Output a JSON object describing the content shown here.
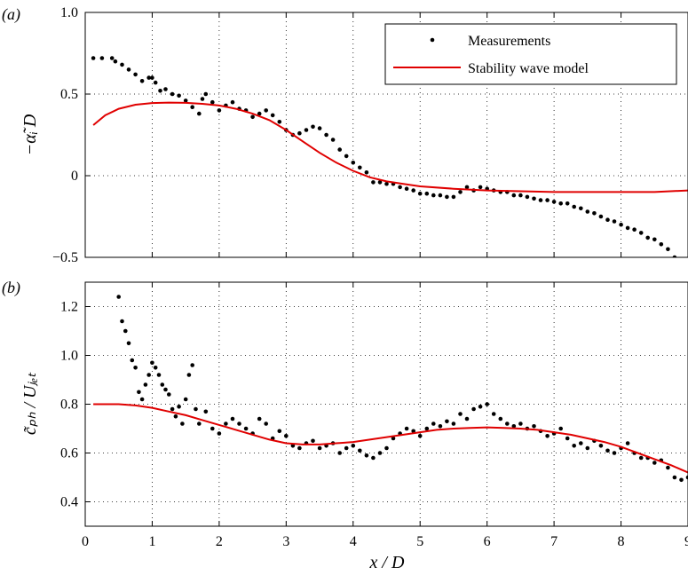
{
  "chart_data": [
    {
      "type": "scatter",
      "panel_label": "(a)",
      "ylabel": "−α̃ᵢ D",
      "xlim": [
        0,
        9
      ],
      "ylim": [
        -0.5,
        1.0
      ],
      "xticks": [
        0,
        1,
        2,
        3,
        4,
        5,
        6,
        7,
        8,
        9
      ],
      "yticks": [
        -0.5,
        0,
        0.5,
        1.0
      ],
      "ytick_labels": [
        "−0.5",
        "0",
        "0.5",
        "1.0"
      ],
      "grid": true,
      "legend_position": "top-right",
      "series": [
        {
          "name": "Measurements",
          "style": "markers",
          "color": "#000000",
          "x": [
            0.12,
            0.25,
            0.4,
            0.45,
            0.55,
            0.65,
            0.75,
            0.85,
            0.95,
            1.0,
            1.05,
            1.12,
            1.2,
            1.3,
            1.4,
            1.5,
            1.6,
            1.7,
            1.75,
            1.8,
            1.9,
            2.0,
            2.1,
            2.2,
            2.3,
            2.4,
            2.5,
            2.6,
            2.7,
            2.8,
            2.9,
            3.0,
            3.1,
            3.2,
            3.3,
            3.4,
            3.5,
            3.6,
            3.7,
            3.8,
            3.9,
            4.0,
            4.1,
            4.2,
            4.3,
            4.4,
            4.5,
            4.6,
            4.7,
            4.8,
            4.9,
            5.0,
            5.1,
            5.2,
            5.3,
            5.4,
            5.5,
            5.6,
            5.7,
            5.8,
            5.9,
            6.0,
            6.1,
            6.2,
            6.3,
            6.4,
            6.5,
            6.6,
            6.7,
            6.8,
            6.9,
            7.0,
            7.1,
            7.2,
            7.3,
            7.4,
            7.5,
            7.6,
            7.7,
            7.8,
            7.9,
            8.0,
            8.1,
            8.2,
            8.3,
            8.4,
            8.5,
            8.6,
            8.7,
            8.8
          ],
          "y": [
            0.72,
            0.72,
            0.72,
            0.7,
            0.68,
            0.65,
            0.62,
            0.58,
            0.6,
            0.6,
            0.57,
            0.52,
            0.53,
            0.5,
            0.49,
            0.46,
            0.42,
            0.38,
            0.47,
            0.5,
            0.45,
            0.4,
            0.43,
            0.45,
            0.41,
            0.4,
            0.36,
            0.38,
            0.4,
            0.37,
            0.33,
            0.28,
            0.25,
            0.26,
            0.28,
            0.3,
            0.29,
            0.25,
            0.22,
            0.16,
            0.12,
            0.08,
            0.05,
            0.02,
            -0.04,
            -0.04,
            -0.05,
            -0.05,
            -0.07,
            -0.08,
            -0.09,
            -0.11,
            -0.11,
            -0.12,
            -0.12,
            -0.13,
            -0.13,
            -0.1,
            -0.07,
            -0.09,
            -0.07,
            -0.08,
            -0.09,
            -0.1,
            -0.1,
            -0.12,
            -0.12,
            -0.13,
            -0.14,
            -0.15,
            -0.15,
            -0.16,
            -0.17,
            -0.17,
            -0.19,
            -0.2,
            -0.22,
            -0.23,
            -0.25,
            -0.27,
            -0.28,
            -0.3,
            -0.32,
            -0.33,
            -0.35,
            -0.38,
            -0.39,
            -0.42,
            -0.45,
            -0.5
          ]
        },
        {
          "name": "Stability wave model",
          "style": "line",
          "color": "#e00000",
          "x": [
            0.12,
            0.3,
            0.5,
            0.75,
            1.0,
            1.25,
            1.5,
            1.75,
            2.0,
            2.25,
            2.5,
            2.75,
            3.0,
            3.25,
            3.5,
            3.75,
            4.0,
            4.25,
            4.5,
            4.75,
            5.0,
            5.5,
            6.0,
            6.5,
            7.0,
            7.5,
            8.0,
            8.5,
            9.0
          ],
          "y": [
            0.31,
            0.37,
            0.41,
            0.435,
            0.445,
            0.448,
            0.446,
            0.44,
            0.43,
            0.41,
            0.38,
            0.34,
            0.28,
            0.21,
            0.14,
            0.08,
            0.03,
            -0.01,
            -0.035,
            -0.05,
            -0.065,
            -0.08,
            -0.09,
            -0.095,
            -0.1,
            -0.1,
            -0.1,
            -0.1,
            -0.09
          ]
        }
      ]
    },
    {
      "type": "scatter",
      "panel_label": "(b)",
      "ylabel": "c̃ₚₕ / Uⱼₑₜ",
      "xlabel": "x / D",
      "xlim": [
        0,
        9
      ],
      "ylim": [
        0.3,
        1.3
      ],
      "xticks": [
        0,
        1,
        2,
        3,
        4,
        5,
        6,
        7,
        8,
        9
      ],
      "yticks": [
        0.4,
        0.6,
        0.8,
        1.0,
        1.2
      ],
      "ytick_labels": [
        "0.4",
        "0.6",
        "0.8",
        "1.0",
        "1.2"
      ],
      "grid": true,
      "series": [
        {
          "name": "Measurements",
          "style": "markers",
          "color": "#000000",
          "x": [
            0.5,
            0.55,
            0.6,
            0.65,
            0.7,
            0.75,
            0.8,
            0.85,
            0.9,
            0.95,
            1.0,
            1.05,
            1.1,
            1.15,
            1.2,
            1.25,
            1.3,
            1.35,
            1.4,
            1.45,
            1.5,
            1.55,
            1.6,
            1.65,
            1.7,
            1.8,
            1.9,
            2.0,
            2.1,
            2.2,
            2.3,
            2.4,
            2.5,
            2.6,
            2.7,
            2.8,
            2.9,
            3.0,
            3.1,
            3.2,
            3.3,
            3.4,
            3.5,
            3.6,
            3.7,
            3.8,
            3.9,
            4.0,
            4.1,
            4.2,
            4.3,
            4.4,
            4.5,
            4.6,
            4.7,
            4.8,
            4.9,
            5.0,
            5.1,
            5.2,
            5.3,
            5.4,
            5.5,
            5.6,
            5.7,
            5.8,
            5.9,
            6.0,
            6.1,
            6.2,
            6.3,
            6.4,
            6.5,
            6.6,
            6.7,
            6.8,
            6.9,
            7.0,
            7.1,
            7.2,
            7.3,
            7.4,
            7.5,
            7.6,
            7.7,
            7.8,
            7.9,
            8.0,
            8.1,
            8.2,
            8.3,
            8.4,
            8.5,
            8.6,
            8.7,
            8.8,
            8.9,
            9.0
          ],
          "y": [
            1.24,
            1.14,
            1.1,
            1.05,
            0.98,
            0.95,
            0.85,
            0.82,
            0.88,
            0.92,
            0.97,
            0.95,
            0.92,
            0.88,
            0.86,
            0.84,
            0.78,
            0.75,
            0.79,
            0.72,
            0.82,
            0.92,
            0.96,
            0.78,
            0.72,
            0.77,
            0.7,
            0.68,
            0.72,
            0.74,
            0.72,
            0.7,
            0.68,
            0.74,
            0.72,
            0.66,
            0.69,
            0.67,
            0.63,
            0.62,
            0.64,
            0.65,
            0.62,
            0.63,
            0.64,
            0.6,
            0.62,
            0.63,
            0.61,
            0.59,
            0.58,
            0.6,
            0.62,
            0.66,
            0.68,
            0.7,
            0.69,
            0.67,
            0.7,
            0.72,
            0.71,
            0.73,
            0.72,
            0.76,
            0.74,
            0.78,
            0.79,
            0.8,
            0.76,
            0.74,
            0.72,
            0.71,
            0.72,
            0.7,
            0.71,
            0.69,
            0.67,
            0.68,
            0.7,
            0.66,
            0.63,
            0.64,
            0.62,
            0.65,
            0.63,
            0.61,
            0.6,
            0.62,
            0.64,
            0.6,
            0.58,
            0.58,
            0.56,
            0.57,
            0.54,
            0.5,
            0.49,
            0.5
          ]
        },
        {
          "name": "Stability wave model",
          "style": "line",
          "color": "#e00000",
          "x": [
            0.12,
            0.5,
            0.75,
            1.0,
            1.25,
            1.5,
            1.75,
            2.0,
            2.25,
            2.5,
            2.75,
            3.0,
            3.25,
            3.5,
            3.75,
            4.0,
            4.25,
            4.5,
            4.75,
            5.0,
            5.25,
            5.5,
            5.75,
            6.0,
            6.25,
            6.5,
            6.75,
            7.0,
            7.25,
            7.5,
            7.75,
            8.0,
            8.25,
            8.5,
            8.75,
            9.0
          ],
          "y": [
            0.8,
            0.8,
            0.795,
            0.785,
            0.77,
            0.755,
            0.735,
            0.715,
            0.695,
            0.675,
            0.655,
            0.64,
            0.635,
            0.635,
            0.64,
            0.645,
            0.655,
            0.665,
            0.675,
            0.685,
            0.695,
            0.7,
            0.703,
            0.705,
            0.703,
            0.7,
            0.695,
            0.685,
            0.675,
            0.66,
            0.645,
            0.625,
            0.6,
            0.575,
            0.55,
            0.52
          ]
        }
      ]
    }
  ]
}
